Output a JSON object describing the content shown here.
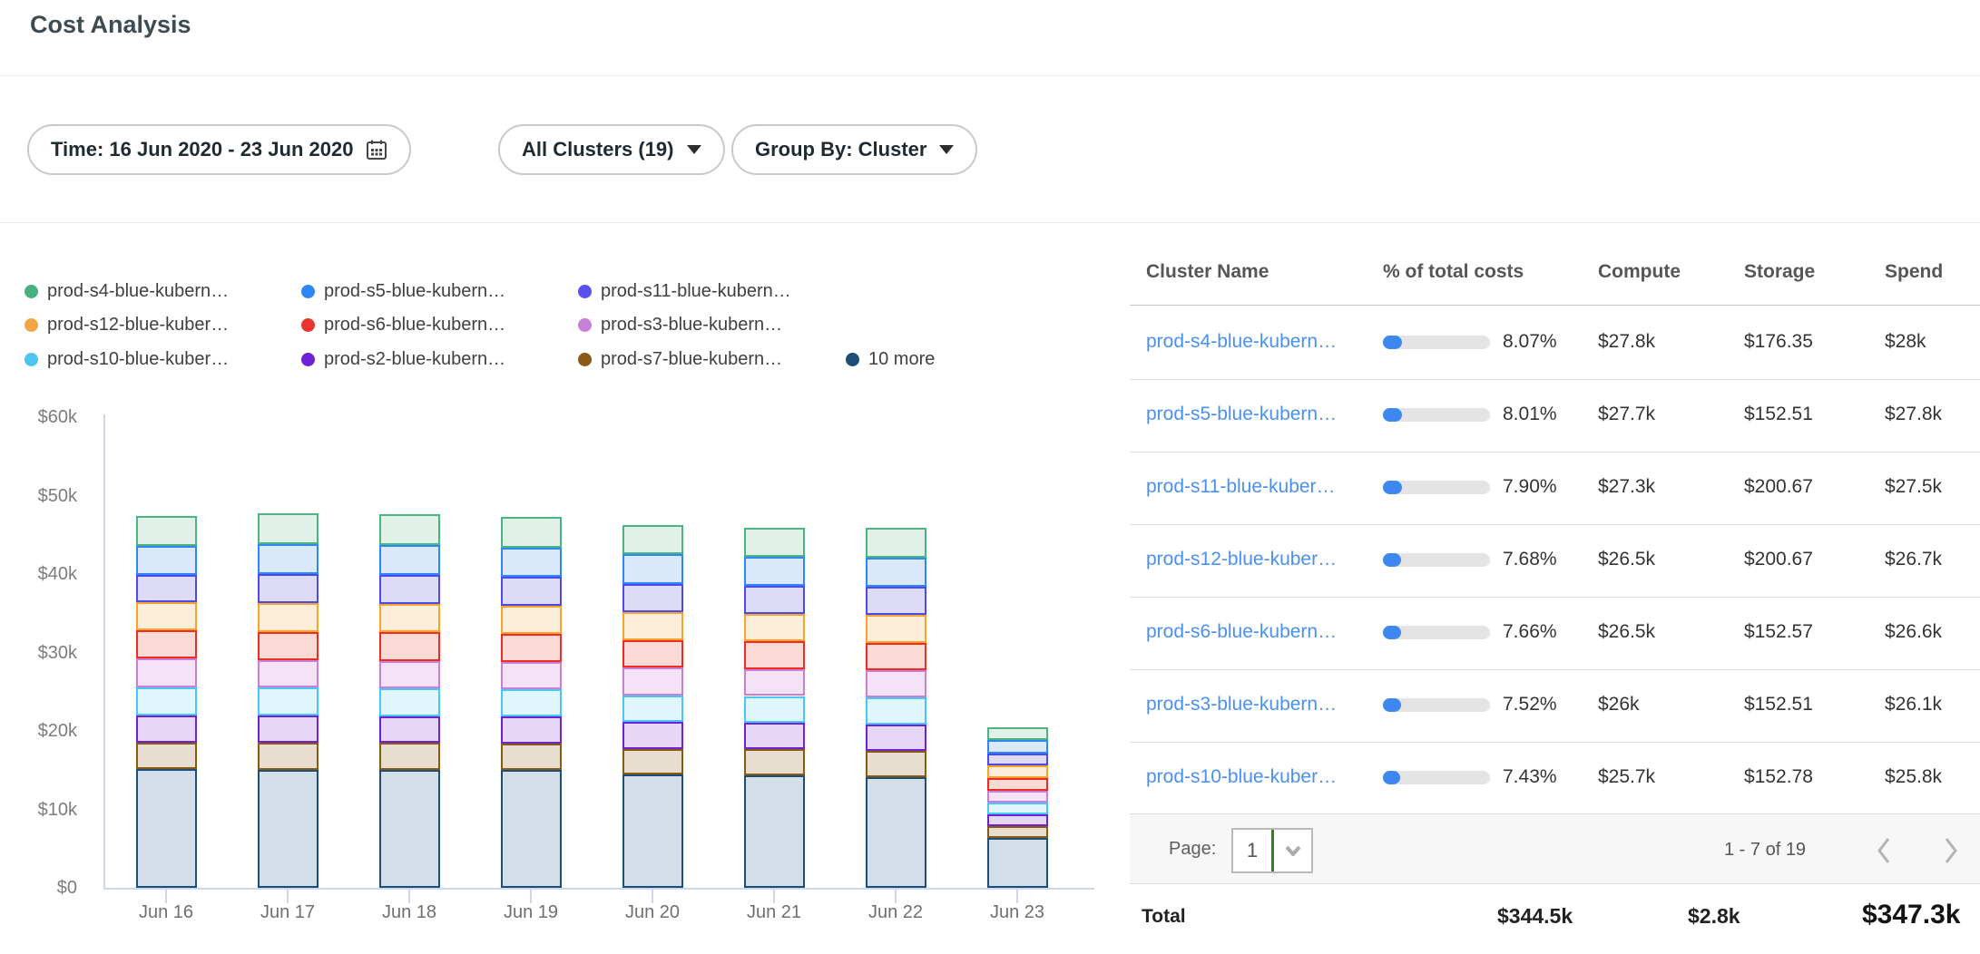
{
  "header": {
    "title": "Cost Analysis"
  },
  "filters": {
    "time": {
      "label": "Time: 16 Jun 2020 - 23 Jun 2020",
      "icon": "calendar-icon"
    },
    "clusters": {
      "label": "All Clusters (19)",
      "icon": "chevron-down-icon"
    },
    "group_by": {
      "label": "Group By: Cluster",
      "icon": "chevron-down-icon"
    }
  },
  "legend": {
    "items": [
      {
        "label": "prod-s4-blue-kubern…",
        "color": "#46b17e"
      },
      {
        "label": "prod-s5-blue-kubern…",
        "color": "#2f86f6"
      },
      {
        "label": "prod-s11-blue-kubern…",
        "color": "#5a50ee"
      },
      {
        "label": "prod-s12-blue-kuber…",
        "color": "#f2a643"
      },
      {
        "label": "prod-s6-blue-kubern…",
        "color": "#ea342e"
      },
      {
        "label": "prod-s3-blue-kubern…",
        "color": "#c87fd7"
      },
      {
        "label": "prod-s10-blue-kuber…",
        "color": "#4ec4f0"
      },
      {
        "label": "prod-s2-blue-kubern…",
        "color": "#6e22d5"
      },
      {
        "label": "prod-s7-blue-kubern…",
        "color": "#8a5a16"
      },
      {
        "label": "10 more",
        "color": "#1d4e79"
      }
    ]
  },
  "chart_data": {
    "type": "bar",
    "stacked": true,
    "x": [
      "Jun 16",
      "Jun 17",
      "Jun 18",
      "Jun 19",
      "Jun 20",
      "Jun 21",
      "Jun 22",
      "Jun 23"
    ],
    "ytick_labels": [
      "$0",
      "$10k",
      "$20k",
      "$30k",
      "$40k",
      "$50k",
      "$60k"
    ],
    "ylim": [
      0,
      60000
    ],
    "unit": "USD thousands per day",
    "grid": false,
    "legend_position": "top-left",
    "stack_order_bottom_to_top": [
      "10 more",
      "prod-s7",
      "prod-s2",
      "prod-s10",
      "prod-s3",
      "prod-s6",
      "prod-s12",
      "prod-s11",
      "prod-s5",
      "prod-s4"
    ],
    "series": [
      {
        "name": "prod-s4-blue-kubern…",
        "color": "#4db380",
        "fill": "#e0f2e7",
        "values_k": [
          3.8,
          3.9,
          3.9,
          3.85,
          3.8,
          3.75,
          3.8,
          1.7
        ]
      },
      {
        "name": "prod-s5-blue-kubern…",
        "color": "#2f86f6",
        "fill": "#dae8fc",
        "values_k": [
          3.7,
          3.8,
          3.8,
          3.75,
          3.75,
          3.7,
          3.7,
          1.65
        ]
      },
      {
        "name": "prod-s11-blue-kubern…",
        "color": "#4b4af0",
        "fill": "#dedbf9",
        "values_k": [
          3.5,
          3.7,
          3.7,
          3.65,
          3.6,
          3.55,
          3.6,
          1.6
        ]
      },
      {
        "name": "prod-s12-blue-kuber…",
        "color": "#f6a42c",
        "fill": "#fdeed9",
        "values_k": [
          3.6,
          3.65,
          3.65,
          3.6,
          3.55,
          3.5,
          3.55,
          1.6
        ]
      },
      {
        "name": "prod-s6-blue-kubern…",
        "color": "#ee2c22",
        "fill": "#fbdad6",
        "values_k": [
          3.6,
          3.6,
          3.6,
          3.6,
          3.55,
          3.5,
          3.5,
          1.55
        ]
      },
      {
        "name": "prod-s3-blue-kubern…",
        "color": "#c97fd8",
        "fill": "#f4e3f6",
        "values_k": [
          3.6,
          3.55,
          3.55,
          3.5,
          3.5,
          3.45,
          3.5,
          1.55
        ]
      },
      {
        "name": "prod-s10-blue-kuber…",
        "color": "#47c7f2",
        "fill": "#e0f6fd",
        "values_k": [
          3.6,
          3.5,
          3.5,
          3.5,
          3.45,
          3.4,
          3.45,
          1.5
        ]
      },
      {
        "name": "prod-s2-blue-kubern…",
        "color": "#6d22d4",
        "fill": "#e6d6f8",
        "values_k": [
          3.5,
          3.5,
          3.45,
          3.45,
          3.4,
          3.4,
          3.4,
          1.5
        ]
      },
      {
        "name": "prod-s7-blue-kubern…",
        "color": "#8a5a13",
        "fill": "#e8decf",
        "values_k": [
          3.4,
          3.45,
          3.4,
          3.35,
          3.3,
          3.3,
          3.3,
          1.45
        ]
      },
      {
        "name": "10 more",
        "color": "#1d4e79",
        "fill": "#d3dee9",
        "values_k": [
          15.1,
          15.05,
          15.05,
          15.0,
          14.4,
          14.35,
          14.1,
          6.4
        ]
      }
    ]
  },
  "table": {
    "columns": [
      "Cluster Name",
      "% of total costs",
      "Compute",
      "Storage",
      "Spend"
    ],
    "rows": [
      {
        "name": "prod-s4-blue-kubern…",
        "pct": "8.07%",
        "pct_value": 8.07,
        "compute": "$27.8k",
        "storage": "$176.35",
        "spend": "$28k"
      },
      {
        "name": "prod-s5-blue-kubern…",
        "pct": "8.01%",
        "pct_value": 8.01,
        "compute": "$27.7k",
        "storage": "$152.51",
        "spend": "$27.8k"
      },
      {
        "name": "prod-s11-blue-kuber…",
        "pct": "7.90%",
        "pct_value": 7.9,
        "compute": "$27.3k",
        "storage": "$200.67",
        "spend": "$27.5k"
      },
      {
        "name": "prod-s12-blue-kuber…",
        "pct": "7.68%",
        "pct_value": 7.68,
        "compute": "$26.5k",
        "storage": "$200.67",
        "spend": "$26.7k"
      },
      {
        "name": "prod-s6-blue-kubern…",
        "pct": "7.66%",
        "pct_value": 7.66,
        "compute": "$26.5k",
        "storage": "$152.57",
        "spend": "$26.6k"
      },
      {
        "name": "prod-s3-blue-kubern…",
        "pct": "7.52%",
        "pct_value": 7.52,
        "compute": "$26k",
        "storage": "$152.51",
        "spend": "$26.1k"
      },
      {
        "name": "prod-s10-blue-kuber…",
        "pct": "7.43%",
        "pct_value": 7.43,
        "compute": "$25.7k",
        "storage": "$152.78",
        "spend": "$25.8k"
      }
    ],
    "pagination": {
      "label": "Page:",
      "page": "1",
      "range": "1 - 7 of 19"
    },
    "total": {
      "label": "Total",
      "compute": "$344.5k",
      "storage": "$2.8k",
      "spend": "$347.3k"
    }
  },
  "colors": {
    "link": "#4a90f2",
    "progress_fill": "#3d87f0",
    "progress_track": "#e4e4e4",
    "axis": "#cdd6ee",
    "page_select_divider": "#2f831f"
  }
}
